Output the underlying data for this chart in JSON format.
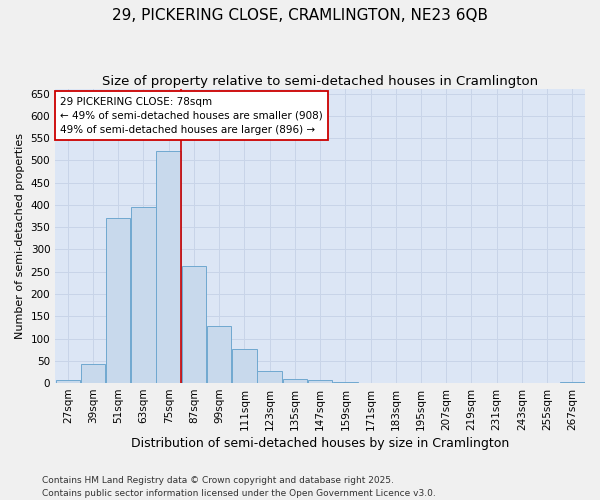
{
  "title": "29, PICKERING CLOSE, CRAMLINGTON, NE23 6QB",
  "subtitle": "Size of property relative to semi-detached houses in Cramlington",
  "xlabel": "Distribution of semi-detached houses by size in Cramlington",
  "ylabel": "Number of semi-detached properties",
  "footer": "Contains HM Land Registry data © Crown copyright and database right 2025.\nContains public sector information licensed under the Open Government Licence v3.0.",
  "categories": [
    "27sqm",
    "39sqm",
    "51sqm",
    "63sqm",
    "75sqm",
    "87sqm",
    "99sqm",
    "111sqm",
    "123sqm",
    "135sqm",
    "147sqm",
    "159sqm",
    "171sqm",
    "183sqm",
    "195sqm",
    "207sqm",
    "219sqm",
    "231sqm",
    "243sqm",
    "255sqm",
    "267sqm"
  ],
  "values": [
    7,
    42,
    370,
    395,
    522,
    262,
    128,
    77,
    27,
    10,
    7,
    2,
    0,
    0,
    0,
    0,
    0,
    0,
    0,
    0,
    3
  ],
  "bar_color": "#c8d9ec",
  "bar_edge_color": "#6fa8d0",
  "vline_color": "#cc0000",
  "vline_x_index": 5,
  "annotation_text": "29 PICKERING CLOSE: 78sqm\n← 49% of semi-detached houses are smaller (908)\n49% of semi-detached houses are larger (896) →",
  "annotation_box_color": "#ffffff",
  "annotation_box_edge": "#cc0000",
  "ylim": [
    0,
    660
  ],
  "yticks": [
    0,
    50,
    100,
    150,
    200,
    250,
    300,
    350,
    400,
    450,
    500,
    550,
    600,
    650
  ],
  "grid_color": "#c8d4e8",
  "bg_color": "#dce6f5",
  "fig_bg_color": "#f0f0f0",
  "title_fontsize": 11,
  "subtitle_fontsize": 9.5,
  "xlabel_fontsize": 9,
  "ylabel_fontsize": 8,
  "tick_fontsize": 7.5,
  "annotation_fontsize": 7.5,
  "footer_fontsize": 6.5
}
